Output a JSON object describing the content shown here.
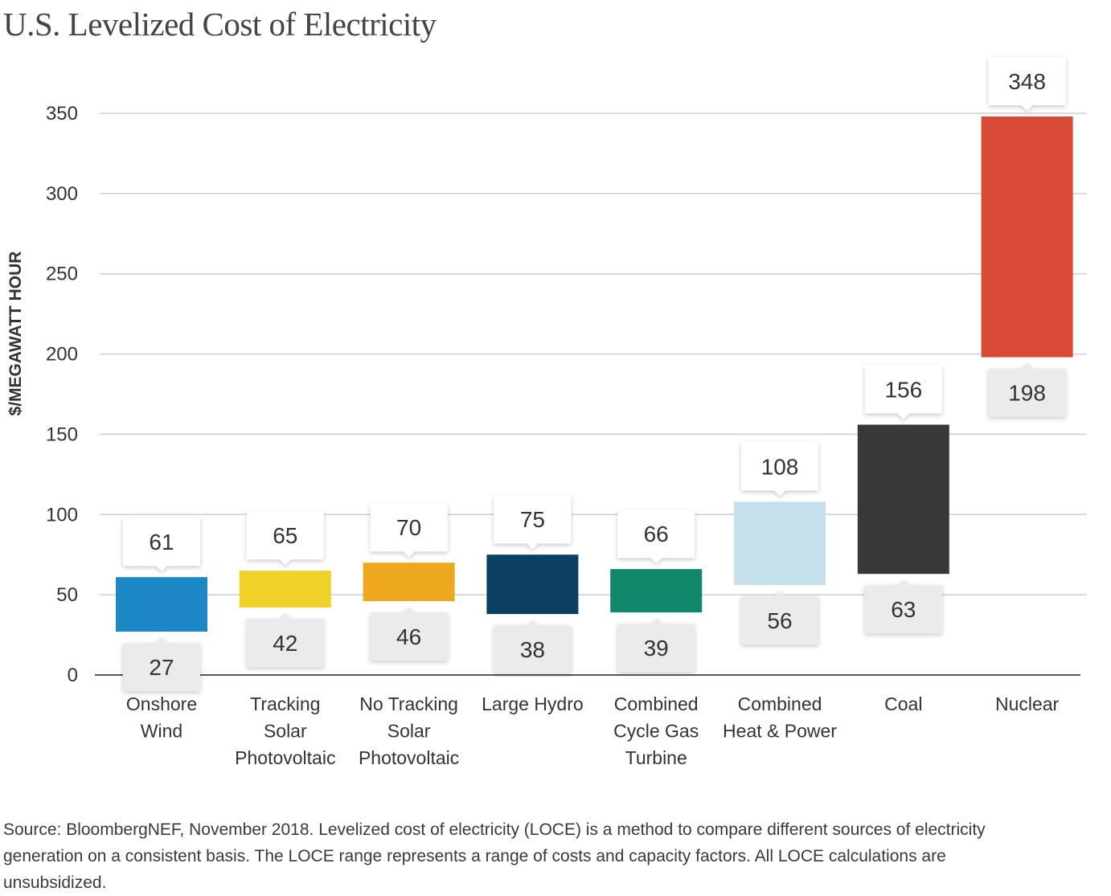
{
  "chart_data": {
    "type": "bar",
    "subtype": "floating-range",
    "title": "U.S. Levelized Cost of Electricity",
    "xlabel": "",
    "ylabel": "$/MEGAWATT HOUR",
    "ylim": [
      0,
      350
    ],
    "yticks": [
      0,
      50,
      100,
      150,
      200,
      250,
      300,
      350
    ],
    "grid": true,
    "legend": "none",
    "categories": [
      [
        "Onshore",
        "Wind"
      ],
      [
        "Tracking",
        "Solar",
        "Photovoltaic"
      ],
      [
        "No Tracking",
        "Solar",
        "Photovoltaic"
      ],
      [
        "Large Hydro"
      ],
      [
        "Combined",
        "Cycle Gas",
        "Turbine"
      ],
      [
        "Combined",
        "Heat & Power"
      ],
      [
        "Coal"
      ],
      [
        "Nuclear"
      ]
    ],
    "low": [
      27,
      42,
      46,
      38,
      39,
      56,
      63,
      198
    ],
    "high": [
      61,
      65,
      70,
      75,
      66,
      108,
      156,
      348
    ],
    "colors": [
      "#1e88c6",
      "#f0d12a",
      "#eea81f",
      "#0b3f62",
      "#11866a",
      "#c3e0eb",
      "#383838",
      "#d84a35"
    ]
  },
  "source_note": "Source: BloombergNEF, November 2018. Levelized cost of electricity (LOCE) is a method to compare different sources of electricity generation on a consistent basis. The LOCE range represents a range of costs and capacity factors. All LOCE calculations are unsubsidized."
}
